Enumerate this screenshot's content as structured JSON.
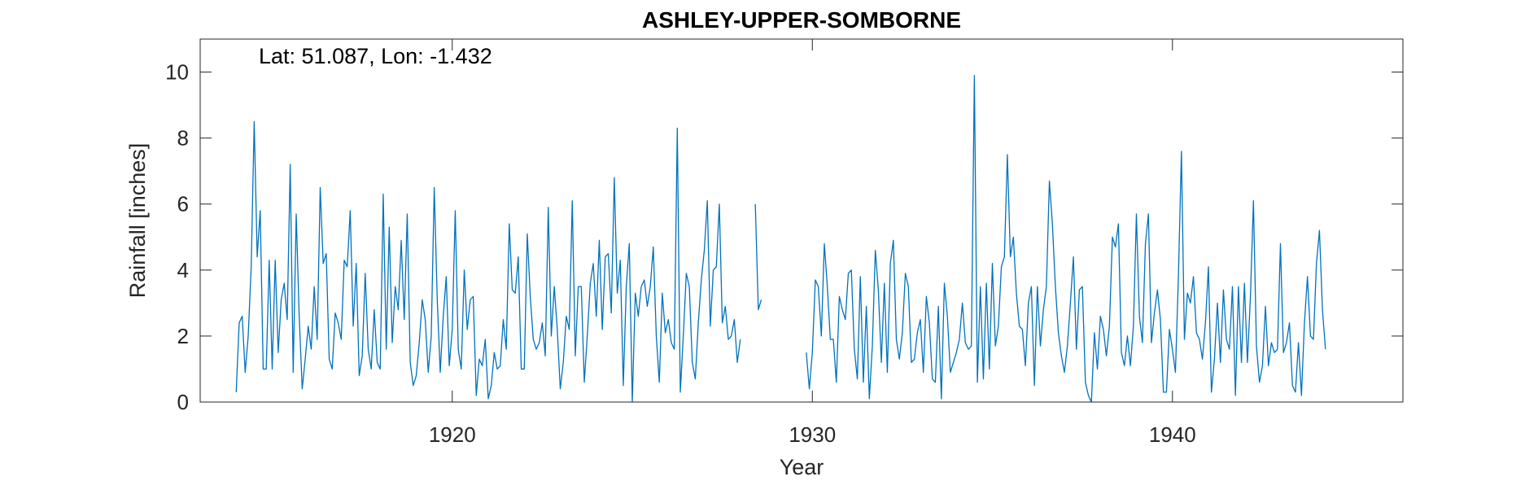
{
  "chart_data": {
    "type": "line",
    "title": "ASHLEY-UPPER-SOMBORNE",
    "xlabel": "Year",
    "ylabel": "Rainfall [inches]",
    "annotation": "Lat: 51.087, Lon: -1.432",
    "xlim": [
      1913.0,
      1946.4
    ],
    "ylim": [
      0,
      11
    ],
    "xticks": [
      1920,
      1930,
      1940
    ],
    "yticks": [
      0,
      2,
      4,
      6,
      8,
      10
    ],
    "grid": false,
    "line_color": "#0072BD",
    "series": [
      {
        "x_start": 1914.0,
        "x_step": 0.08333,
        "segments": [
          {
            "start_index": 0,
            "values": [
              0.3,
              2.4,
              2.6,
              0.9,
              2.0,
              4.1,
              8.5,
              4.4,
              5.8,
              1.0,
              1.0,
              4.3,
              1.0,
              4.3,
              1.5,
              3.1,
              3.6,
              2.5,
              7.2,
              0.9,
              5.7,
              2.6,
              0.4,
              1.3,
              2.3,
              1.6,
              3.5,
              1.9,
              6.5,
              4.2,
              4.5,
              1.3,
              1.0,
              2.7,
              2.4,
              1.9,
              4.3,
              4.1,
              5.8,
              2.3,
              4.2,
              0.8,
              1.4,
              3.9,
              1.6,
              1.0,
              2.8,
              1.2,
              1.0,
              6.3,
              1.6,
              5.3,
              1.8,
              3.5,
              2.8,
              4.9,
              2.5,
              5.7,
              1.2,
              0.5,
              0.8,
              1.8,
              3.1,
              2.5,
              0.9,
              2.0,
              6.5,
              3.1,
              0.9,
              2.6,
              3.8,
              1.1,
              2.2,
              5.8,
              1.6,
              1.0,
              4.0,
              2.2,
              3.1,
              3.2,
              0.2,
              1.3,
              1.1,
              1.9,
              0.1,
              0.5,
              1.5,
              1.0,
              1.1,
              2.5,
              1.6,
              5.4,
              3.4,
              3.3,
              4.4,
              1.0,
              1.0,
              5.1,
              3.2,
              1.9,
              1.6,
              1.8,
              2.4,
              1.4,
              5.9,
              2.0,
              3.5,
              2.2,
              0.4,
              1.2,
              2.6,
              2.2,
              6.1,
              1.4,
              3.5,
              3.5,
              0.6,
              2.0,
              3.6,
              4.2,
              2.6,
              4.9,
              2.2,
              4.4,
              4.5,
              2.7,
              6.8,
              3.3,
              4.3,
              0.5,
              3.5,
              4.8,
              0.0,
              3.3,
              2.6,
              3.5,
              3.7,
              2.9,
              3.5,
              4.7,
              2.0,
              0.6,
              3.3,
              2.1,
              2.5,
              1.8,
              1.6,
              8.3,
              0.3,
              2.0,
              3.9,
              3.5,
              1.2,
              0.7,
              2.4,
              3.7,
              4.6,
              6.1,
              2.3,
              4.0,
              4.1,
              6.0,
              2.4,
              2.9,
              1.9,
              2.0,
              2.5,
              1.2,
              1.9
            ]
          },
          {
            "start_index": 173,
            "values": [
              6.0,
              2.8,
              3.1
            ]
          },
          {
            "start_index": 190,
            "values": [
              1.5,
              0.4,
              1.5,
              3.7,
              3.5,
              2.0,
              4.8,
              3.5,
              1.9,
              1.9,
              0.6,
              3.2,
              2.8,
              2.5,
              3.9,
              4.0,
              1.6,
              0.7,
              3.8,
              0.6,
              2.9,
              0.1,
              1.7,
              4.6,
              3.4,
              1.2,
              3.6,
              0.9,
              4.2,
              4.9,
              1.9,
              1.3,
              2.1,
              3.9,
              3.5,
              1.2,
              1.3,
              2.1,
              2.5,
              0.9,
              3.2,
              2.4,
              0.7,
              0.6,
              2.9,
              0.1,
              3.6,
              2.6,
              0.9,
              1.2,
              1.5,
              1.9,
              3.0,
              1.8,
              1.6,
              1.7,
              9.9,
              0.6,
              3.5,
              0.7,
              3.6,
              1.0,
              4.2,
              1.7,
              2.3,
              4.1,
              4.4,
              7.5,
              4.4,
              5.0,
              3.3,
              2.3,
              2.2,
              1.1,
              3.0,
              3.5,
              0.5,
              3.5,
              1.7,
              2.8,
              3.5,
              6.7,
              5.4,
              3.5,
              2.1,
              1.4,
              0.9,
              1.7,
              3.0,
              4.4,
              1.6,
              3.4,
              3.5,
              0.6,
              0.2,
              0.0,
              2.1,
              1.0,
              2.6,
              2.2,
              1.4,
              2.3,
              5.0,
              4.7,
              5.4,
              1.5,
              1.1,
              2.0,
              1.1,
              2.3,
              5.7,
              2.6,
              1.8,
              4.8,
              5.7,
              1.8,
              2.7,
              3.4,
              2.5,
              0.3,
              0.3,
              2.2,
              1.6,
              0.9,
              3.8,
              7.6,
              1.9,
              3.3,
              3.0,
              3.8,
              2.1,
              1.9,
              1.3,
              2.4,
              4.1,
              0.3,
              1.3,
              3.0,
              1.2,
              3.4,
              1.9,
              1.6,
              3.5,
              0.2,
              3.5,
              1.2,
              3.6,
              1.2,
              3.2,
              6.1,
              1.7,
              0.6,
              1.1,
              2.9,
              1.1,
              1.8,
              1.5,
              1.6,
              4.8,
              1.5,
              1.8,
              2.4,
              0.5,
              0.3,
              1.8,
              0.2,
              2.4,
              3.8,
              2.0,
              1.9,
              4.2,
              5.2,
              2.8,
              1.6
            ]
          }
        ]
      }
    ]
  }
}
